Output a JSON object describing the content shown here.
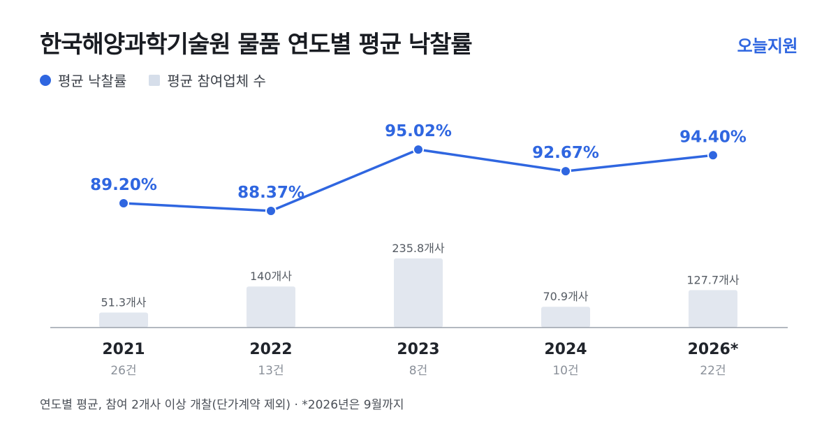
{
  "header": {
    "title": "한국해양과학기술원 물품 연도별 평균 낙찰률",
    "brand": "오늘지원"
  },
  "legend": {
    "rate": "평균 낙찰률",
    "bidders": "평균 참여업체 수"
  },
  "footnote": "연도별 평균, 참여 2개사 이상 개찰(단가계약 제외) · *2026년은 9월까지",
  "colors": {
    "line": "#2f66e0",
    "bar": "#e2e7ef",
    "axis": "#9aa1ab"
  },
  "chart_data": {
    "type": "bar",
    "categories": [
      "2021",
      "2022",
      "2023",
      "2024",
      "2026*"
    ],
    "category_counts": [
      "26건",
      "13건",
      "8건",
      "10건",
      "22건"
    ],
    "series": [
      {
        "name": "평균 낙찰률",
        "kind": "line",
        "values": [
          89.2,
          88.37,
          95.02,
          92.67,
          94.4
        ],
        "labels": [
          "89.20%",
          "88.37%",
          "95.02%",
          "92.67%",
          "94.40%"
        ]
      },
      {
        "name": "평균 참여업체 수",
        "kind": "bar",
        "values": [
          51.3,
          140,
          235.8,
          70.9,
          127.7
        ],
        "labels": [
          "51.3개사",
          "140개사",
          "235.8개사",
          "70.9개사",
          "127.7개사"
        ]
      }
    ]
  }
}
